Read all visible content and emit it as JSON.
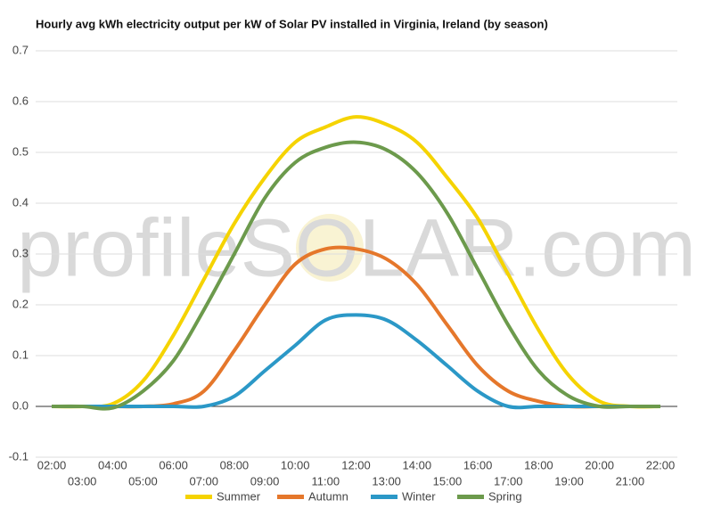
{
  "chart_data": {
    "type": "line",
    "title": "Hourly avg kWh electricity output per kW of Solar PV installed in Virginia, Ireland (by season)",
    "watermark": "profileSOLAR.com",
    "categories": [
      "02:00",
      "03:00",
      "04:00",
      "05:00",
      "06:00",
      "07:00",
      "08:00",
      "09:00",
      "10:00",
      "11:00",
      "12:00",
      "13:00",
      "14:00",
      "15:00",
      "16:00",
      "17:00",
      "18:00",
      "19:00",
      "20:00",
      "21:00",
      "22:00"
    ],
    "series": [
      {
        "name": "Summer",
        "color": "#f5d300",
        "values": [
          0,
          0,
          0.005,
          0.05,
          0.14,
          0.25,
          0.36,
          0.45,
          0.52,
          0.55,
          0.57,
          0.555,
          0.52,
          0.45,
          0.37,
          0.26,
          0.15,
          0.06,
          0.01,
          0,
          0
        ]
      },
      {
        "name": "Autumn",
        "color": "#e5772b",
        "values": [
          0,
          0,
          0,
          0,
          0.005,
          0.03,
          0.11,
          0.2,
          0.28,
          0.31,
          0.31,
          0.29,
          0.24,
          0.16,
          0.08,
          0.03,
          0.01,
          0,
          0,
          0,
          0
        ]
      },
      {
        "name": "Winter",
        "color": "#2b98c7",
        "values": [
          0,
          0,
          0,
          0,
          0,
          0,
          0.02,
          0.07,
          0.12,
          0.17,
          0.18,
          0.17,
          0.13,
          0.08,
          0.03,
          0,
          0,
          0,
          0,
          0,
          0
        ]
      },
      {
        "name": "Spring",
        "color": "#6c9a4c",
        "values": [
          0,
          0,
          -0.003,
          0.03,
          0.09,
          0.19,
          0.3,
          0.41,
          0.48,
          0.51,
          0.52,
          0.505,
          0.46,
          0.38,
          0.27,
          0.16,
          0.07,
          0.02,
          0,
          0,
          0
        ]
      }
    ],
    "ylim": [
      -0.1,
      0.7
    ],
    "yticks": [
      -0.1,
      {
        "value": 0,
        "label": "0.0"
      },
      0.1,
      0.2,
      0.3,
      0.4,
      0.5,
      0.6,
      0.7
    ],
    "grid": true
  }
}
